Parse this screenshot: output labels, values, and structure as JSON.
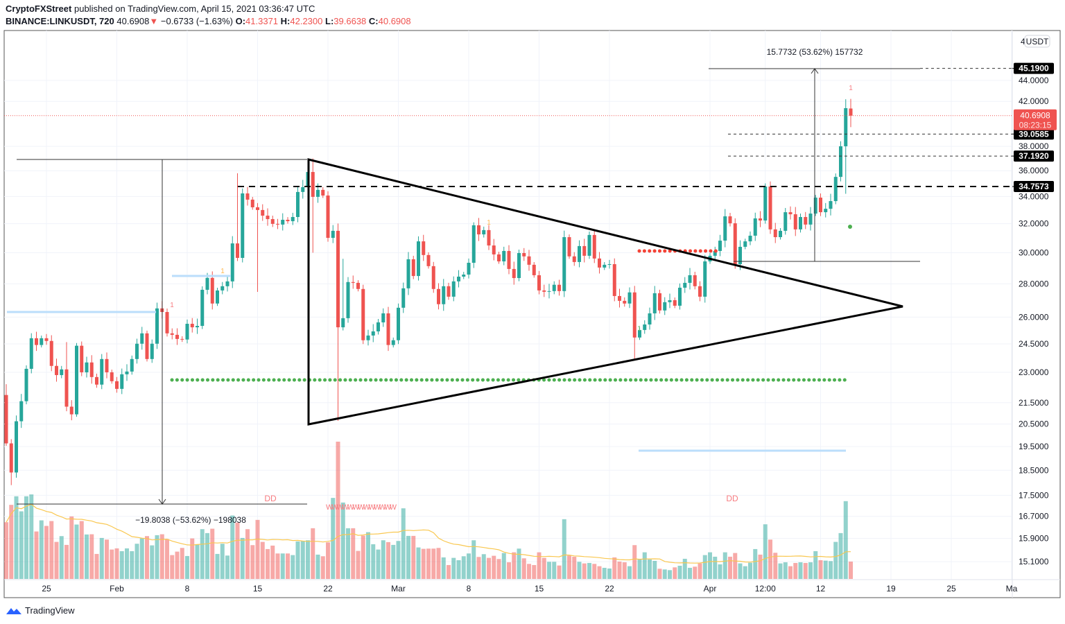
{
  "header": {
    "author": "CryptoFXStreet",
    "published": "published on TradingView.com, April 15, 2021 03:36:47 UTC",
    "symbol": "BINANCE:LINKUSDT, 720",
    "last": "40.6908",
    "change": "−0.6733 (−1.63%)",
    "o_label": "O:",
    "o": "41.3371",
    "h_label": "H:",
    "h": "42.2300",
    "l_label": "L:",
    "l": "39.6638",
    "c_label": "C:",
    "c": "40.6908"
  },
  "footer": {
    "brand": "TradingView"
  },
  "colors": {
    "up": "#26a69a",
    "down": "#ef5350",
    "ma": "#f9c74f",
    "level_badge": "#000000",
    "last_badge": "#ef5350"
  },
  "chart_data": {
    "type": "candlestick",
    "title": "BINANCE:LINKUSDT 12h",
    "yscale": "log",
    "currency_button": "USDT",
    "first_open": 21.87,
    "closes": [
      19.64,
      18.41,
      20.63,
      21.57,
      23.18,
      24.81,
      24.44,
      24.81,
      24.66,
      23.33,
      22.86,
      23.15,
      21.31,
      20.95,
      24.4,
      23.0,
      23.51,
      22.76,
      22.38,
      23.69,
      23.0,
      22.55,
      22.17,
      22.9,
      23.04,
      23.69,
      24.51,
      25.08,
      23.69,
      24.51,
      26.51,
      26.3,
      25.08,
      25.0,
      24.77,
      24.74,
      25.62,
      25.42,
      25.5,
      27.63,
      28.37,
      26.8,
      27.59,
      27.85,
      28.15,
      30.63,
      29.66,
      34.23,
      33.76,
      33.19,
      32.99,
      32.58,
      32.33,
      31.99,
      31.94,
      32.28,
      32.18,
      32.48,
      34.34,
      34.71,
      35.9,
      33.97,
      34.5,
      34.07,
      31.01,
      31.5,
      25.42,
      25.94,
      28.11,
      28.06,
      27.68,
      24.7,
      24.96,
      25.19,
      25.7,
      26.22,
      24.44,
      24.7,
      26.55,
      27.72,
      29.57,
      28.49,
      30.77,
      29.85,
      29.12,
      27.68,
      26.76,
      27.85,
      27.21,
      28.15,
      28.45,
      28.58,
      29.34,
      31.89,
      31.25,
      31.55,
      30.49,
      29.89,
      29.43,
      30.12,
      28.94,
      28.36,
      29.98,
      29.76,
      29.21,
      28.54,
      27.59,
      27.51,
      27.55,
      27.94,
      27.55,
      31.06,
      29.76,
      29.39,
      30.45,
      29.8,
      31.21,
      29.62,
      29.03,
      29.21,
      29.25,
      27.25,
      26.96,
      26.8,
      27.47,
      24.85,
      25.27,
      25.58,
      26.22,
      27.42,
      26.39,
      26.88,
      27.0,
      26.67,
      27.76,
      28.06,
      28.54,
      27.85,
      27.21,
      29.43,
      29.8,
      30.12,
      30.82,
      32.53,
      32.03,
      29.25,
      30.4,
      30.77,
      31.16,
      32.38,
      32.23,
      34.76,
      31.6,
      31.06,
      31.5,
      32.83,
      32.68,
      31.6,
      32.48,
      31.94,
      32.73,
      33.91,
      32.83,
      33.08,
      33.65,
      35.51,
      38.01,
      41.37,
      40.69
    ],
    "wick_overrides": {
      "1": {
        "h": 22.4
      },
      "2": {
        "l": 17.9
      },
      "13": {
        "h": 24.6
      },
      "47": {
        "h": 35.8
      },
      "51": {
        "l": 27.5
      },
      "62": {
        "h": 37.0,
        "l": 30.0
      },
      "67": {
        "l": 20.65
      },
      "68": {
        "h": 29.6
      },
      "94": {
        "h": 32.1
      },
      "126": {
        "l": 23.7
      },
      "152": {
        "h": 35.0
      },
      "168": {
        "h": 42.2,
        "l": 34.2
      },
      "169": {
        "h": 42.23,
        "l": 39.66
      }
    },
    "volume_relative": [
      245,
      320,
      357,
      292,
      357,
      365,
      205,
      253,
      229,
      250,
      160,
      185,
      147,
      270,
      235,
      250,
      192,
      193,
      108,
      177,
      170,
      127,
      132,
      120,
      132,
      120,
      152,
      175,
      185,
      145,
      189,
      193,
      172,
      103,
      118,
      134,
      99,
      175,
      150,
      215,
      198,
      217,
      108,
      152,
      101,
      274,
      243,
      177,
      215,
      146,
      255,
      160,
      129,
      144,
      110,
      110,
      110,
      103,
      162,
      163,
      167,
      219,
      105,
      98,
      158,
      350,
      593,
      330,
      219,
      219,
      121,
      187,
      202,
      150,
      127,
      167,
      159,
      147,
      164,
      305,
      186,
      186,
      136,
      130,
      131,
      131,
      134,
      93,
      60,
      91,
      81,
      98,
      110,
      167,
      95,
      107,
      91,
      100,
      86,
      112,
      72,
      115,
      131,
      89,
      65,
      60,
      115,
      91,
      74,
      74,
      58,
      258,
      101,
      96,
      74,
      67,
      69,
      65,
      55,
      48,
      45,
      93,
      75,
      72,
      55,
      146,
      84,
      115,
      84,
      78,
      44,
      41,
      38,
      50,
      57,
      87,
      48,
      53,
      67,
      103,
      115,
      96,
      63,
      115,
      96,
      112,
      67,
      55,
      70,
      129,
      105,
      236,
      170,
      113,
      67,
      72,
      55,
      69,
      72,
      69,
      72,
      120,
      81,
      79,
      77,
      160,
      198,
      336,
      75
    ],
    "volume_ma_period": 20,
    "price_ticks": [
      "44.0000",
      "42.0000",
      "38.0000",
      "36.0000",
      "34.0000",
      "32.0000",
      "30.0000",
      "28.0000",
      "26.0000",
      "24.5000",
      "23.0000",
      "21.5000",
      "20.5000",
      "19.5000",
      "18.5000",
      "17.5000",
      "16.7000",
      "15.9000",
      "15.1000"
    ],
    "price_tick_partial": "4",
    "time_ticks": [
      {
        "label": "25",
        "day": 4
      },
      {
        "label": "Feb",
        "day": 11
      },
      {
        "label": "8",
        "day": 18
      },
      {
        "label": "15",
        "day": 25
      },
      {
        "label": "22",
        "day": 32
      },
      {
        "label": "Mar",
        "day": 39
      },
      {
        "label": "8",
        "day": 46
      },
      {
        "label": "15",
        "day": 53
      },
      {
        "label": "22",
        "day": 60
      },
      {
        "label": "Apr",
        "day": 70
      },
      {
        "label": "12:00",
        "day": 75.5
      },
      {
        "label": "12",
        "day": 81
      },
      {
        "label": "19",
        "day": 88
      },
      {
        "label": "25",
        "day": 94
      },
      {
        "label": "Ma",
        "day": 100
      }
    ],
    "levels": [
      {
        "price": 45.19,
        "label": "45.1900"
      },
      {
        "price": 39.0585,
        "label": "39.0585"
      },
      {
        "price": 37.192,
        "label": "37.1920"
      },
      {
        "price": 34.7573,
        "label": "34.7573"
      }
    ],
    "last_price": {
      "price": 40.6908,
      "label": "40.6908",
      "countdown": "08:23:15"
    },
    "measure_down": "−19.8038 (−53.62%) −198038",
    "measure_up": "15.7732 (53.62%) 157732",
    "annotations": {
      "dd1": "DD",
      "dd2": "DD",
      "waves": "WWWWWWWWWWWWW",
      "m1": "1",
      "m2": "1",
      "m3": "1",
      "m4": "1",
      "m5": "1"
    }
  }
}
